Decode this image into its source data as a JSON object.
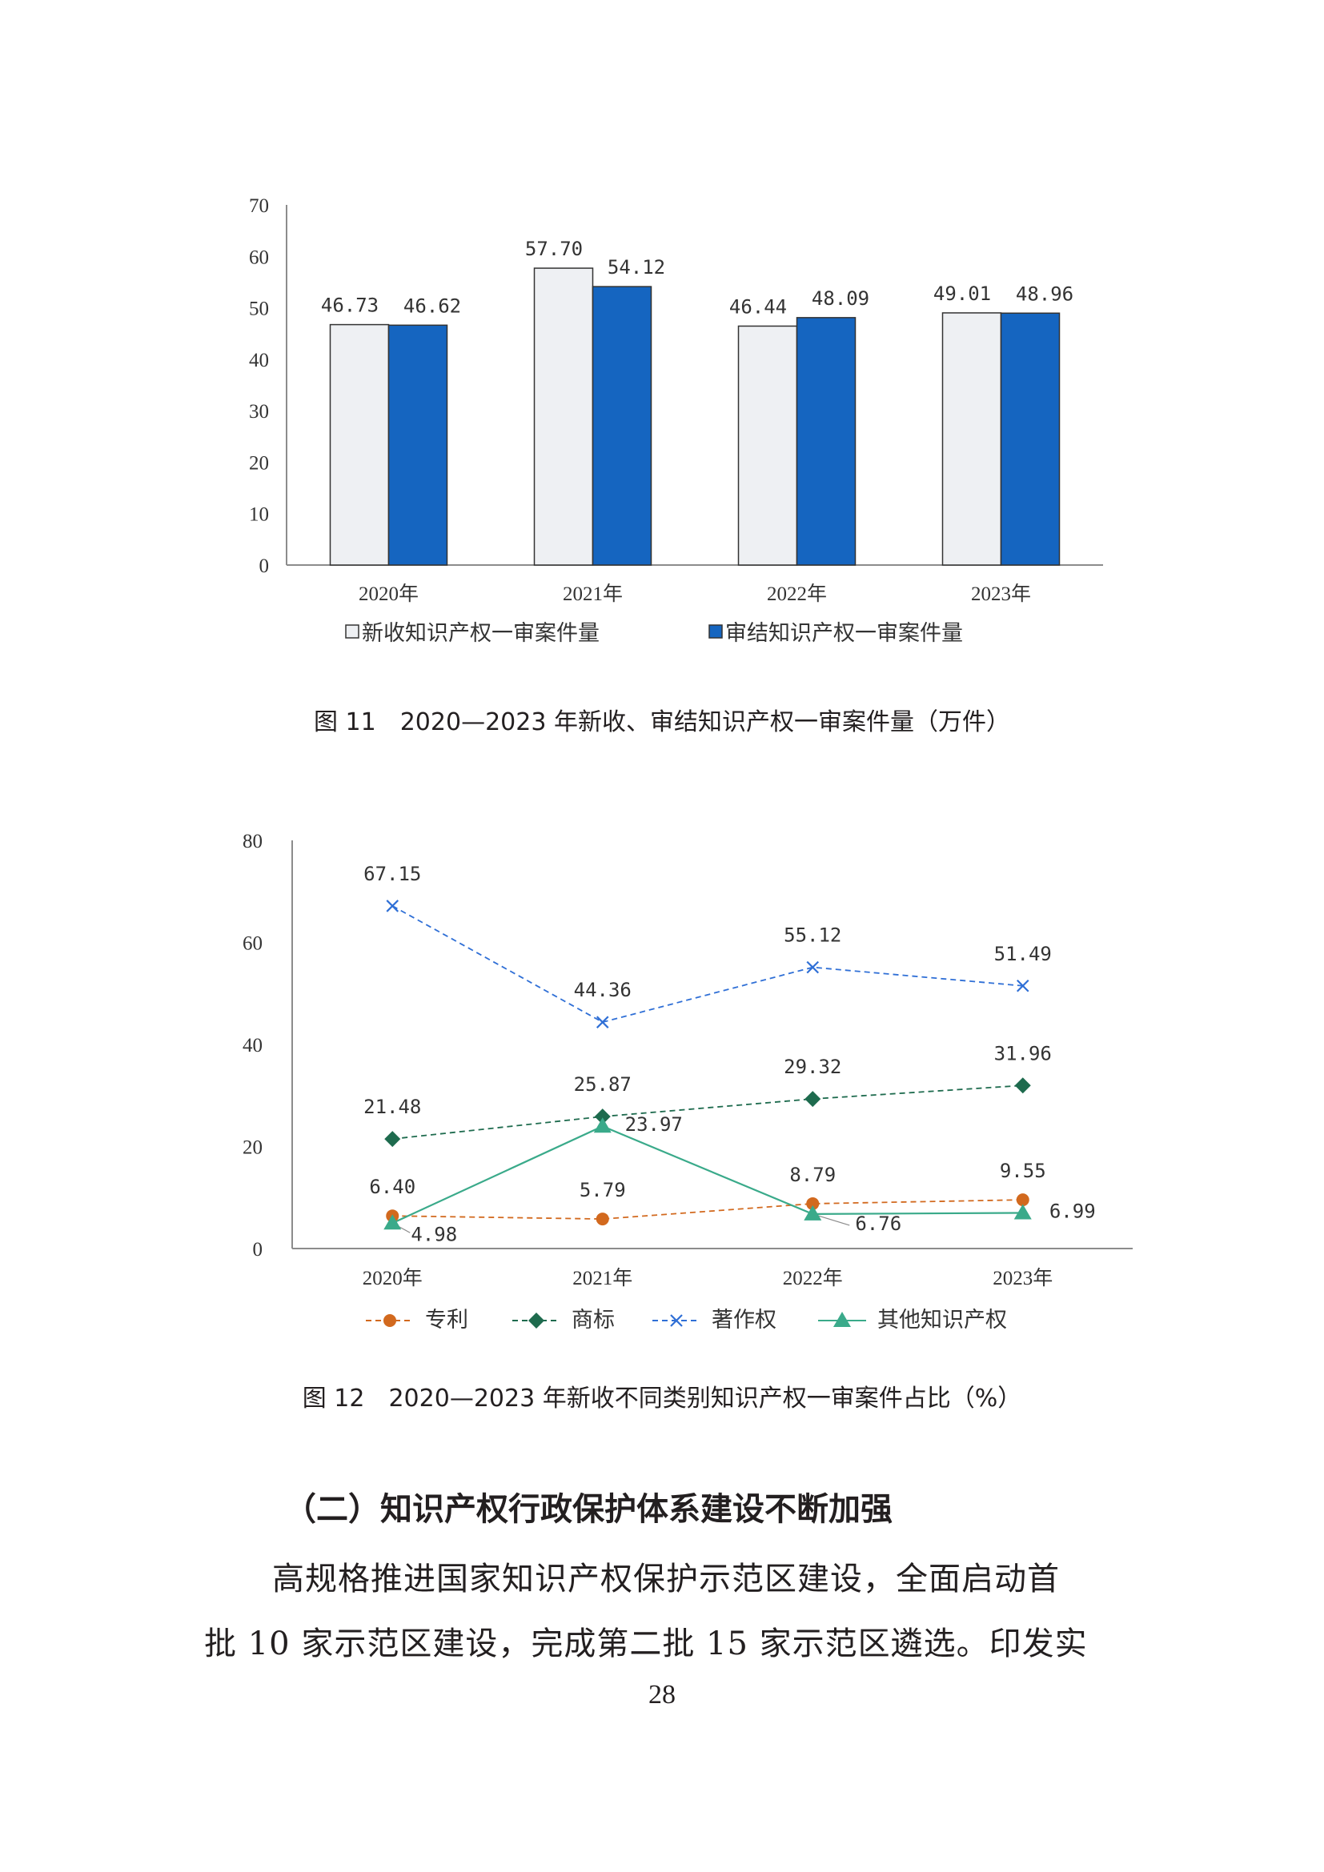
{
  "chart_data": [
    {
      "type": "bar",
      "title": "",
      "categories": [
        "2020年",
        "2021年",
        "2022年",
        "2023年"
      ],
      "series": [
        {
          "name": "新收知识产权一审案件量",
          "values": [
            46.73,
            57.7,
            46.44,
            49.01
          ],
          "labels": [
            "46.73",
            "57.70",
            "46.44",
            "49.01"
          ],
          "color": "#eef0f3",
          "stroke": "#333333"
        },
        {
          "name": "审结知识产权一审案件量",
          "values": [
            46.62,
            54.12,
            48.09,
            48.96
          ],
          "labels": [
            "46.62",
            "54.12",
            "48.09",
            "48.96"
          ],
          "color": "#1565c0",
          "stroke": "#333333"
        }
      ],
      "ylim": [
        0,
        70
      ],
      "yticks": [
        "0",
        "10",
        "20",
        "30",
        "40",
        "50",
        "60",
        "70"
      ],
      "grid": false,
      "legend": "bottom"
    },
    {
      "type": "line",
      "title": "",
      "categories": [
        "2020年",
        "2021年",
        "2022年",
        "2023年"
      ],
      "series": [
        {
          "name": "专利",
          "values": [
            6.4,
            5.79,
            8.79,
            9.55
          ],
          "labels": [
            "6.40",
            "5.79",
            "8.79",
            "9.55"
          ],
          "color": "#d2691e",
          "marker": "circle",
          "dashed": true
        },
        {
          "name": "商标",
          "values": [
            21.48,
            25.87,
            29.32,
            31.96
          ],
          "labels": [
            "21.48",
            "25.87",
            "29.32",
            "31.96"
          ],
          "color": "#1e6b4e",
          "marker": "diamond",
          "dashed": true
        },
        {
          "name": "著作权",
          "values": [
            67.15,
            44.36,
            55.12,
            51.49
          ],
          "labels": [
            "67.15",
            "44.36",
            "55.12",
            "51.49"
          ],
          "color": "#2f6fd6",
          "marker": "x",
          "dashed": true
        },
        {
          "name": "其他知识产权",
          "values": [
            4.98,
            23.97,
            6.76,
            6.99
          ],
          "labels": [
            "4.98",
            "23.97",
            "6.76",
            "6.99"
          ],
          "color": "#3aaa8a",
          "marker": "triangle",
          "dashed": false
        }
      ],
      "ylim": [
        0,
        80
      ],
      "yticks": [
        "0",
        "20",
        "40",
        "60",
        "80"
      ],
      "grid": false,
      "legend": "bottom"
    }
  ],
  "captions": {
    "fig11": "图 11　2020—2023 年新收、审结知识产权一审案件量（万件）",
    "fig12": "图 12　2020—2023 年新收不同类别知识产权一审案件占比（%）"
  },
  "section": {
    "heading": "（二）知识产权行政保护体系建设不断加强",
    "lines": [
      "高规格推进国家知识产权保护示范区建设，全面启动首",
      "批 10 家示范区建设，完成第二批 15 家示范区遴选。印发实"
    ]
  },
  "page_number": "28"
}
